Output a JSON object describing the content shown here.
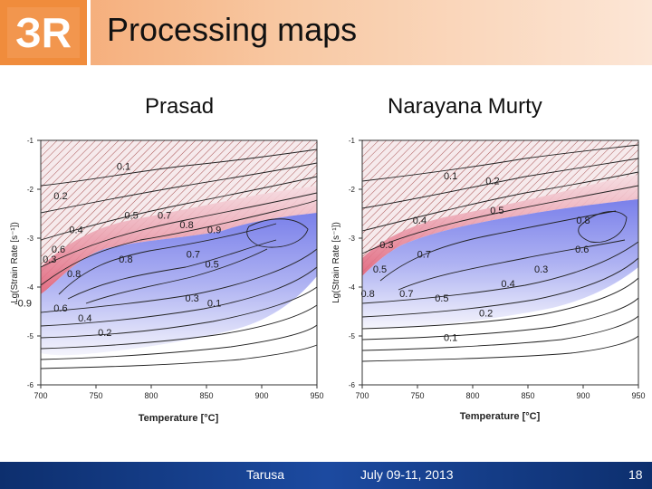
{
  "slide": {
    "title": "Processing maps",
    "logo_text": "ЗR",
    "left_caption": "Prasad",
    "right_caption": "Narayana Murty"
  },
  "footer": {
    "place": "Tarusa",
    "date": "July 09-11, 2013",
    "page": "18"
  },
  "colors": {
    "instability": "#e06078",
    "stable": "#8c91ec",
    "header": "#f08c3c",
    "footer": "#1c4aa0"
  },
  "chart_data": [
    {
      "type": "contour",
      "title": "Prasad",
      "xlabel": "Temperature [°C]",
      "ylabel": "Lg(Strain Rate [s⁻¹])",
      "xlim": [
        700,
        950
      ],
      "ylim": [
        -6,
        -1
      ],
      "xticks": [
        "700",
        "750",
        "800",
        "850",
        "900",
        "950"
      ],
      "yticks": [
        "-1",
        "-2",
        "-3",
        "-4",
        "-5",
        "-6"
      ],
      "contour_labels": [
        {
          "text": "0.1",
          "x": 775,
          "y": -1.6
        },
        {
          "text": "0.2",
          "x": 718,
          "y": -2.2
        },
        {
          "text": "0.3",
          "x": 708,
          "y": -3.5
        },
        {
          "text": "0.4",
          "x": 732,
          "y": -2.9
        },
        {
          "text": "0.5",
          "x": 782,
          "y": -2.6
        },
        {
          "text": "0.6",
          "x": 716,
          "y": -3.3
        },
        {
          "text": "0.7",
          "x": 812,
          "y": -2.6
        },
        {
          "text": "0.8",
          "x": 832,
          "y": -2.8
        },
        {
          "text": "0.9",
          "x": 857,
          "y": -2.9
        },
        {
          "text": "0.8",
          "x": 730,
          "y": -3.8
        },
        {
          "text": "0.8",
          "x": 777,
          "y": -3.5
        },
        {
          "text": "0.7",
          "x": 838,
          "y": -3.4
        },
        {
          "text": "0.5",
          "x": 855,
          "y": -3.6
        },
        {
          "text": "0.3",
          "x": 837,
          "y": -4.3
        },
        {
          "text": "0.1",
          "x": 857,
          "y": -4.4
        },
        {
          "text": "-0.9",
          "x": 684,
          "y": -4.4
        },
        {
          "text": "0.6",
          "x": 718,
          "y": -4.5
        },
        {
          "text": "0.4",
          "x": 740,
          "y": -4.7
        },
        {
          "text": "0.2",
          "x": 758,
          "y": -5.0
        }
      ]
    },
    {
      "type": "contour",
      "title": "Narayana Murty",
      "xlabel": "Temperature [°C]",
      "ylabel": "Lg(Strain Rate [s⁻¹])",
      "xlim": [
        700,
        950
      ],
      "ylim": [
        -6,
        -1
      ],
      "xticks": [
        "700",
        "750",
        "800",
        "850",
        "900",
        "950"
      ],
      "yticks": [
        "-1",
        "-2",
        "-3",
        "-4",
        "-5",
        "-6"
      ],
      "contour_labels": [
        {
          "text": "0.1",
          "x": 780,
          "y": -1.8
        },
        {
          "text": "0.2",
          "x": 818,
          "y": -1.9
        },
        {
          "text": "0.5",
          "x": 822,
          "y": -2.5
        },
        {
          "text": "0.4",
          "x": 752,
          "y": -2.7
        },
        {
          "text": "0.3",
          "x": 722,
          "y": -3.2
        },
        {
          "text": "0.5",
          "x": 716,
          "y": -3.7
        },
        {
          "text": "0.8",
          "x": 900,
          "y": -2.7
        },
        {
          "text": "0.6",
          "x": 899,
          "y": -3.3
        },
        {
          "text": "0.7",
          "x": 756,
          "y": -3.4
        },
        {
          "text": "0.3",
          "x": 862,
          "y": -3.7
        },
        {
          "text": "0.4",
          "x": 832,
          "y": -4.0
        },
        {
          "text": "0.8",
          "x": 705,
          "y": -4.2
        },
        {
          "text": "0.7",
          "x": 740,
          "y": -4.2
        },
        {
          "text": "0.5",
          "x": 772,
          "y": -4.3
        },
        {
          "text": "0.2",
          "x": 812,
          "y": -4.6
        },
        {
          "text": "0.1",
          "x": 780,
          "y": -5.1
        }
      ]
    }
  ]
}
